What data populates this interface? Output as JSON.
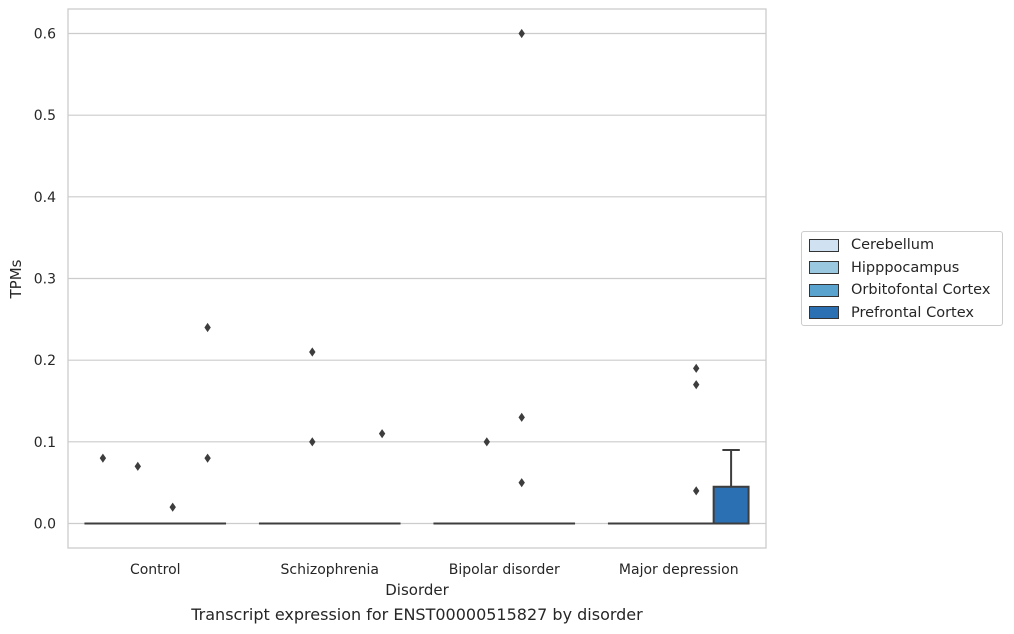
{
  "chart_data": {
    "type": "box",
    "title": "",
    "caption": "Transcript expression for ENST00000515827 by disorder",
    "xlabel": "Disorder",
    "ylabel": "TPMs",
    "ylim": [
      -0.03,
      0.63
    ],
    "yticks": [
      "0.0",
      "0.1",
      "0.2",
      "0.3",
      "0.4",
      "0.5",
      "0.6"
    ],
    "ytick_values": [
      0.0,
      0.1,
      0.2,
      0.3,
      0.4,
      0.5,
      0.6
    ],
    "categories": [
      "Control",
      "Schizophrenia",
      "Bipolar disorder",
      "Major depression"
    ],
    "grid": "horizontal",
    "legend_position": "right",
    "series": [
      {
        "name": "Cerebellum",
        "color": "#d0e1f2",
        "boxes": [
          {
            "q1": 0,
            "median": 0,
            "q3": 0,
            "whisker_low": 0,
            "whisker_high": 0,
            "outliers": [
              0.08
            ]
          },
          {
            "q1": 0,
            "median": 0,
            "q3": 0,
            "whisker_low": 0,
            "whisker_high": 0,
            "outliers": []
          },
          {
            "q1": 0,
            "median": 0,
            "q3": 0,
            "whisker_low": 0,
            "whisker_high": 0,
            "outliers": []
          },
          {
            "q1": 0,
            "median": 0,
            "q3": 0,
            "whisker_low": 0,
            "whisker_high": 0,
            "outliers": []
          }
        ]
      },
      {
        "name": "Hipppocampus",
        "color": "#9ac8e0",
        "boxes": [
          {
            "q1": 0,
            "median": 0,
            "q3": 0,
            "whisker_low": 0,
            "whisker_high": 0,
            "outliers": [
              0.07
            ]
          },
          {
            "q1": 0,
            "median": 0,
            "q3": 0,
            "whisker_low": 0,
            "whisker_high": 0,
            "outliers": [
              0.1,
              0.21
            ]
          },
          {
            "q1": 0,
            "median": 0,
            "q3": 0,
            "whisker_low": 0,
            "whisker_high": 0,
            "outliers": [
              0.1
            ]
          },
          {
            "q1": 0,
            "median": 0,
            "q3": 0,
            "whisker_low": 0,
            "whisker_high": 0,
            "outliers": []
          }
        ]
      },
      {
        "name": "Orbitofontal Cortex",
        "color": "#5ba3cf",
        "boxes": [
          {
            "q1": 0,
            "median": 0,
            "q3": 0,
            "whisker_low": 0,
            "whisker_high": 0,
            "outliers": [
              0.02
            ]
          },
          {
            "q1": 0,
            "median": 0,
            "q3": 0,
            "whisker_low": 0,
            "whisker_high": 0,
            "outliers": []
          },
          {
            "q1": 0,
            "median": 0,
            "q3": 0,
            "whisker_low": 0,
            "whisker_high": 0,
            "outliers": [
              0.6,
              0.05,
              0.13
            ]
          },
          {
            "q1": 0,
            "median": 0,
            "q3": 0,
            "whisker_low": 0,
            "whisker_high": 0,
            "outliers": [
              0.04,
              0.17,
              0.19
            ]
          }
        ]
      },
      {
        "name": "Prefrontal Cortex",
        "color": "#2a70b3",
        "boxes": [
          {
            "q1": 0,
            "median": 0,
            "q3": 0,
            "whisker_low": 0,
            "whisker_high": 0,
            "outliers": [
              0.08,
              0.24
            ]
          },
          {
            "q1": 0,
            "median": 0,
            "q3": 0,
            "whisker_low": 0,
            "whisker_high": 0,
            "outliers": [
              0.11
            ]
          },
          {
            "q1": 0,
            "median": 0,
            "q3": 0,
            "whisker_low": 0,
            "whisker_high": 0,
            "outliers": []
          },
          {
            "q1": 0,
            "median": 0,
            "q3": 0.045,
            "whisker_low": 0,
            "whisker_high": 0.09,
            "outliers": []
          }
        ]
      }
    ]
  }
}
